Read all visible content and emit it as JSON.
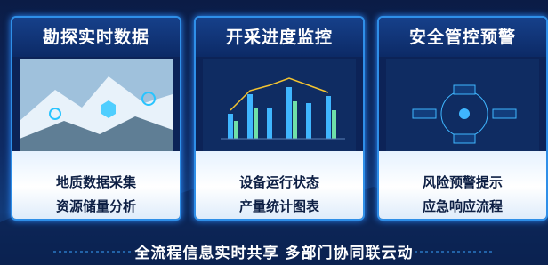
{
  "panels": [
    {
      "title": "勘探实时数据",
      "lines": [
        "地质数据采集",
        "资源储量分析"
      ]
    },
    {
      "title": "开采进度监控",
      "lines": [
        "设备运行状态",
        "产量统计图表"
      ]
    },
    {
      "title": "安全管控预警",
      "lines": [
        "风险预警提示",
        "应急响应流程"
      ]
    }
  ],
  "footer": "全流程信息实时共享  多部门协同联云动"
}
